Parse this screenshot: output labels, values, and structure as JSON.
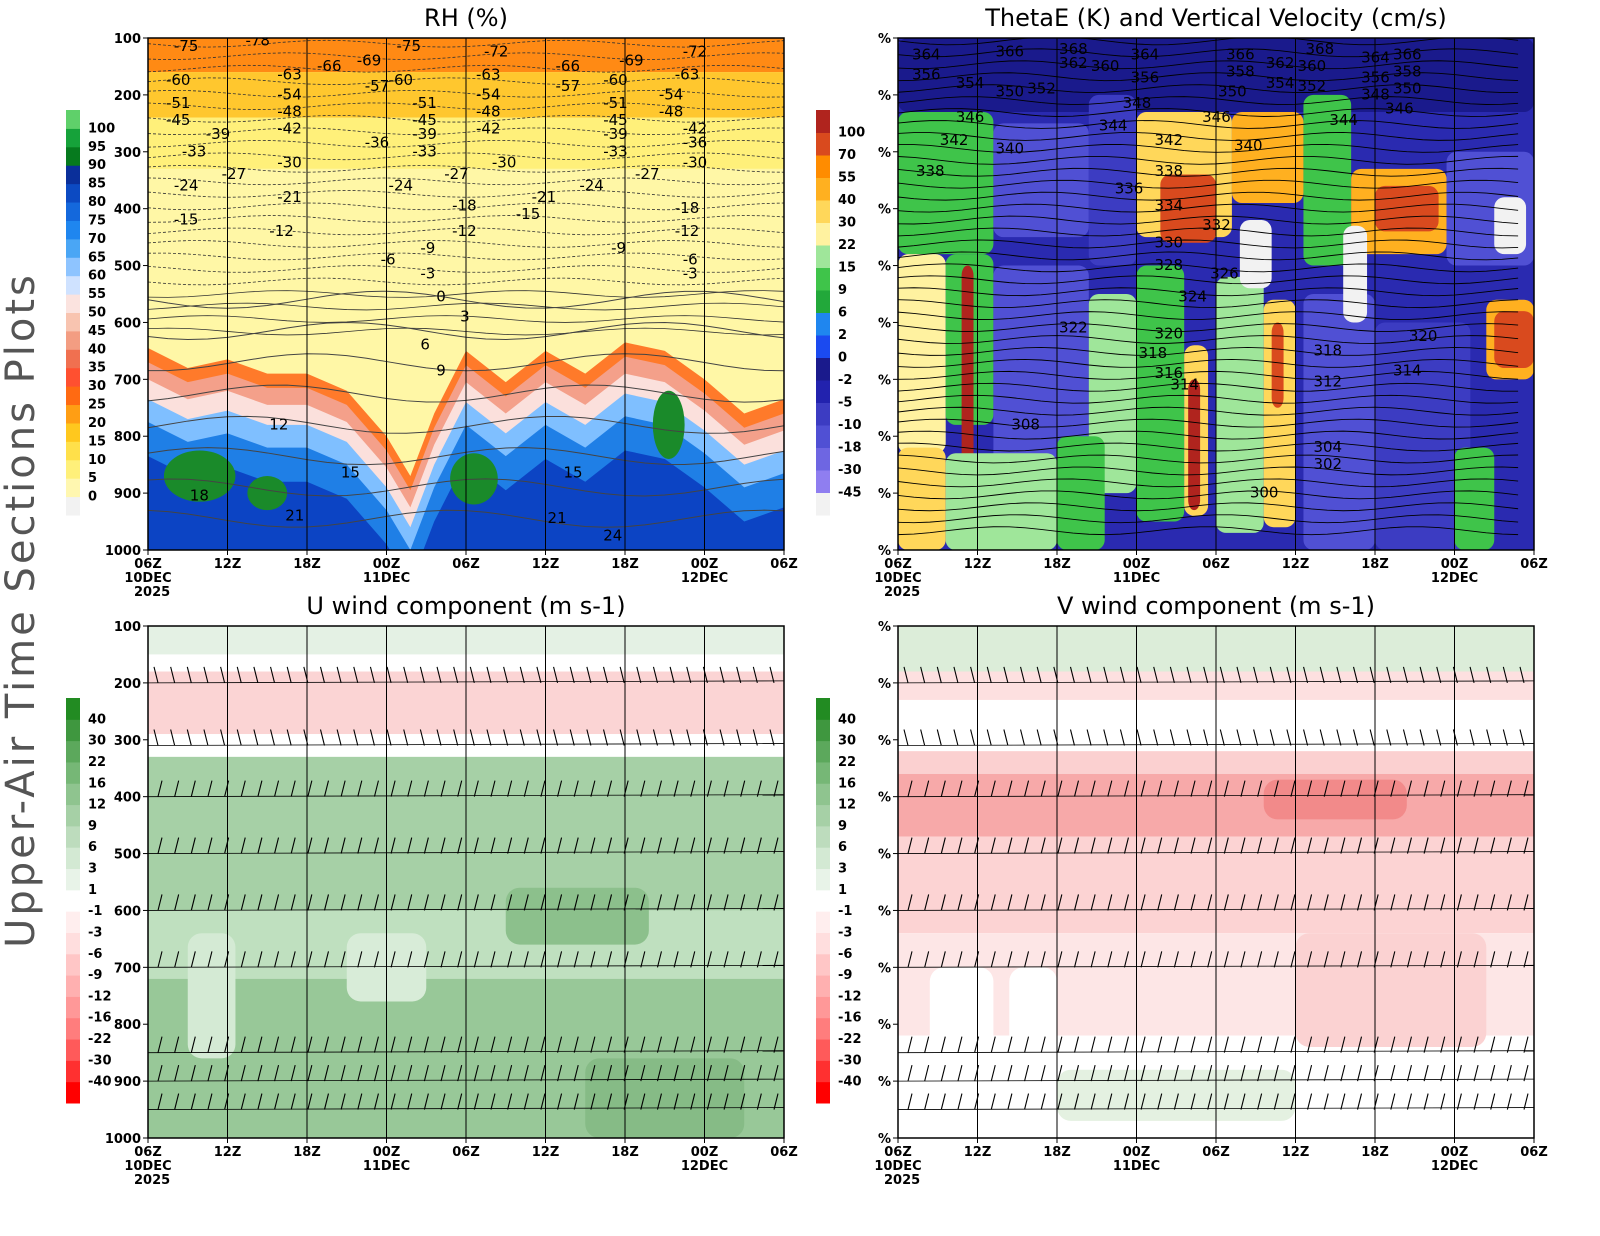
{
  "page": {
    "side_title": "Upper-Air Time Sections Plots"
  },
  "time_axis": {
    "labels": [
      "06Z",
      "12Z",
      "18Z",
      "00Z",
      "06Z",
      "12Z",
      "18Z",
      "00Z",
      "06Z"
    ],
    "date_labels": {
      "0": "10DEC",
      "3": "11DEC",
      "7": "12DEC"
    },
    "year_label": "2025"
  },
  "chart_data": [
    {
      "id": "rh",
      "type": "heatmap",
      "title": "RH (%)",
      "ylabel": "",
      "y_ticks": [
        "100",
        "200",
        "300",
        "400",
        "500",
        "600",
        "700",
        "800",
        "900",
        "1000"
      ],
      "ylim": [
        100,
        1000
      ],
      "colorbar": {
        "labels": [
          "0",
          "5",
          "10",
          "15",
          "20",
          "25",
          "30",
          "35",
          "40",
          "45",
          "50",
          "55",
          "60",
          "65",
          "70",
          "75",
          "80",
          "85",
          "90",
          "95",
          "100"
        ],
        "colors": [
          "#f2f2f2",
          "#fff7b0",
          "#fff07a",
          "#ffe04a",
          "#ffc81e",
          "#ff9e14",
          "#ff6a12",
          "#ff5030",
          "#f07050",
          "#f39d82",
          "#f8c4b0",
          "#fbe3df",
          "#cfe2ff",
          "#8ec4ff",
          "#4aa6f5",
          "#1f86ef",
          "#1468dc",
          "#0c4ac2",
          "#0a2f9a",
          "#067a1e",
          "#16a23a",
          "#5fd06a"
        ]
      },
      "bands": [
        {
          "from_pct": 100,
          "to_pct": 160,
          "color": "#ff8a14"
        },
        {
          "from_pct": 160,
          "to_pct": 240,
          "color": "#ffc72e"
        },
        {
          "from_pct": 240,
          "to_pct": 330,
          "color": "#fff07a"
        },
        {
          "from_pct": 330,
          "to_pct": 640,
          "color": "#fff7a6"
        }
      ],
      "moist_layer": [
        {
          "t": 0.0,
          "p": 645
        },
        {
          "t": 0.5,
          "p": 680
        },
        {
          "t": 1.0,
          "p": 665
        },
        {
          "t": 1.5,
          "p": 690
        },
        {
          "t": 2.0,
          "p": 690
        },
        {
          "t": 2.5,
          "p": 720
        },
        {
          "t": 3.0,
          "p": 800
        },
        {
          "t": 3.3,
          "p": 870
        },
        {
          "t": 3.6,
          "p": 760
        },
        {
          "t": 4.0,
          "p": 650
        },
        {
          "t": 4.5,
          "p": 705
        },
        {
          "t": 5.0,
          "p": 650
        },
        {
          "t": 5.5,
          "p": 690
        },
        {
          "t": 6.0,
          "p": 635
        },
        {
          "t": 6.5,
          "p": 650
        },
        {
          "t": 7.0,
          "p": 700
        },
        {
          "t": 7.5,
          "p": 760
        },
        {
          "t": 8.0,
          "p": 735
        }
      ],
      "contour_labels": [
        {
          "t": 0.2,
          "p": 115,
          "v": "-75"
        },
        {
          "t": 1.1,
          "p": 105,
          "v": "-78"
        },
        {
          "t": 2.5,
          "p": 140,
          "v": "-69"
        },
        {
          "t": 3.0,
          "p": 115,
          "v": "-75"
        },
        {
          "t": 4.1,
          "p": 125,
          "v": "-72"
        },
        {
          "t": 5.0,
          "p": 150,
          "v": "-66"
        },
        {
          "t": 5.8,
          "p": 140,
          "v": "-69"
        },
        {
          "t": 6.6,
          "p": 125,
          "v": "-72"
        },
        {
          "t": 0.1,
          "p": 175,
          "v": "-60"
        },
        {
          "t": 1.5,
          "p": 165,
          "v": "-63"
        },
        {
          "t": 2.0,
          "p": 150,
          "v": "-66"
        },
        {
          "t": 2.6,
          "p": 185,
          "v": "-57"
        },
        {
          "t": 2.9,
          "p": 175,
          "v": "-60"
        },
        {
          "t": 4.0,
          "p": 165,
          "v": "-63"
        },
        {
          "t": 5.0,
          "p": 185,
          "v": "-57"
        },
        {
          "t": 5.6,
          "p": 175,
          "v": "-60"
        },
        {
          "t": 6.5,
          "p": 165,
          "v": "-63"
        },
        {
          "t": 0.1,
          "p": 215,
          "v": "-51"
        },
        {
          "t": 1.5,
          "p": 200,
          "v": "-54"
        },
        {
          "t": 3.2,
          "p": 215,
          "v": "-51"
        },
        {
          "t": 4.0,
          "p": 200,
          "v": "-54"
        },
        {
          "t": 5.6,
          "p": 215,
          "v": "-51"
        },
        {
          "t": 6.3,
          "p": 200,
          "v": "-54"
        },
        {
          "t": 0.1,
          "p": 245,
          "v": "-45"
        },
        {
          "t": 1.5,
          "p": 230,
          "v": "-48"
        },
        {
          "t": 3.2,
          "p": 245,
          "v": "-45"
        },
        {
          "t": 4.0,
          "p": 230,
          "v": "-48"
        },
        {
          "t": 5.6,
          "p": 245,
          "v": "-45"
        },
        {
          "t": 6.3,
          "p": 230,
          "v": "-48"
        },
        {
          "t": 0.6,
          "p": 270,
          "v": "-39"
        },
        {
          "t": 1.5,
          "p": 260,
          "v": "-42"
        },
        {
          "t": 3.2,
          "p": 270,
          "v": "-39"
        },
        {
          "t": 4.0,
          "p": 260,
          "v": "-42"
        },
        {
          "t": 5.6,
          "p": 270,
          "v": "-39"
        },
        {
          "t": 6.6,
          "p": 260,
          "v": "-42"
        },
        {
          "t": 0.3,
          "p": 300,
          "v": "-33"
        },
        {
          "t": 2.6,
          "p": 285,
          "v": "-36"
        },
        {
          "t": 3.2,
          "p": 300,
          "v": "-33"
        },
        {
          "t": 5.6,
          "p": 300,
          "v": "-33"
        },
        {
          "t": 6.6,
          "p": 285,
          "v": "-36"
        },
        {
          "t": 0.8,
          "p": 340,
          "v": "-27"
        },
        {
          "t": 1.5,
          "p": 320,
          "v": "-30"
        },
        {
          "t": 3.6,
          "p": 340,
          "v": "-27"
        },
        {
          "t": 4.2,
          "p": 320,
          "v": "-30"
        },
        {
          "t": 6.0,
          "p": 340,
          "v": "-27"
        },
        {
          "t": 6.6,
          "p": 320,
          "v": "-30"
        },
        {
          "t": 0.2,
          "p": 360,
          "v": "-24"
        },
        {
          "t": 1.5,
          "p": 380,
          "v": "-21"
        },
        {
          "t": 2.9,
          "p": 360,
          "v": "-24"
        },
        {
          "t": 4.7,
          "p": 380,
          "v": "-21"
        },
        {
          "t": 5.3,
          "p": 360,
          "v": "-24"
        },
        {
          "t": 3.7,
          "p": 395,
          "v": "-18"
        },
        {
          "t": 6.5,
          "p": 400,
          "v": "-18"
        },
        {
          "t": 0.2,
          "p": 420,
          "v": "-15"
        },
        {
          "t": 4.5,
          "p": 410,
          "v": "-15"
        },
        {
          "t": 1.4,
          "p": 440,
          "v": "-12"
        },
        {
          "t": 3.7,
          "p": 440,
          "v": "-12"
        },
        {
          "t": 6.5,
          "p": 440,
          "v": "-12"
        },
        {
          "t": 3.3,
          "p": 470,
          "v": "-9"
        },
        {
          "t": 5.7,
          "p": 470,
          "v": "-9"
        },
        {
          "t": 2.8,
          "p": 490,
          "v": "-6"
        },
        {
          "t": 6.6,
          "p": 490,
          "v": "-6"
        },
        {
          "t": 3.3,
          "p": 515,
          "v": "-3"
        },
        {
          "t": 6.6,
          "p": 515,
          "v": "-3"
        },
        {
          "t": 3.5,
          "p": 555,
          "v": "0"
        },
        {
          "t": 3.8,
          "p": 590,
          "v": "3"
        },
        {
          "t": 3.3,
          "p": 640,
          "v": "6"
        },
        {
          "t": 3.5,
          "p": 685,
          "v": "9"
        },
        {
          "t": 1.4,
          "p": 780,
          "v": "12"
        },
        {
          "t": 2.3,
          "p": 865,
          "v": "15"
        },
        {
          "t": 5.1,
          "p": 865,
          "v": "15"
        },
        {
          "t": 0.4,
          "p": 905,
          "v": "18"
        },
        {
          "t": 1.6,
          "p": 940,
          "v": "21"
        },
        {
          "t": 4.9,
          "p": 945,
          "v": "21"
        },
        {
          "t": 5.6,
          "p": 975,
          "v": "24"
        }
      ]
    },
    {
      "id": "thetae",
      "type": "heatmap",
      "title": "ThetaE (K) and Vertical Velocity (cm/s)",
      "ylabel": "",
      "y_ticks": [
        "%",
        "%",
        "%",
        "%",
        "%",
        "%",
        "%",
        "%",
        "%",
        "%"
      ],
      "ylim": [
        100,
        1000
      ],
      "colorbar": {
        "labels": [
          "-45",
          "-30",
          "-18",
          "-10",
          "-5",
          "-2",
          "0",
          "2",
          "6",
          "9",
          "15",
          "22",
          "30",
          "40",
          "55",
          "70",
          "100"
        ],
        "colors": [
          "#f2f2f2",
          "#8f7ef0",
          "#6e66e2",
          "#5050d4",
          "#3c3cc2",
          "#2222ae",
          "#1a1a8c",
          "#1b4af0",
          "#1f86ef",
          "#22a83a",
          "#3fc44a",
          "#9fe69a",
          "#fff2a0",
          "#ffd75a",
          "#ffb020",
          "#ff8c00",
          "#d94a1e",
          "#b0241e"
        ]
      },
      "contour_labels": [
        {
          "t": 0.05,
          "p": 130,
          "v": "364"
        },
        {
          "t": 1.1,
          "p": 125,
          "v": "366"
        },
        {
          "t": 1.9,
          "p": 120,
          "v": "368"
        },
        {
          "t": 1.9,
          "p": 145,
          "v": "362"
        },
        {
          "t": 2.3,
          "p": 150,
          "v": "360"
        },
        {
          "t": 2.8,
          "p": 130,
          "v": "364"
        },
        {
          "t": 2.8,
          "p": 170,
          "v": "356"
        },
        {
          "t": 4.0,
          "p": 130,
          "v": "366"
        },
        {
          "t": 4.0,
          "p": 160,
          "v": "358"
        },
        {
          "t": 4.5,
          "p": 145,
          "v": "362"
        },
        {
          "t": 4.9,
          "p": 150,
          "v": "360"
        },
        {
          "t": 5.0,
          "p": 120,
          "v": "368"
        },
        {
          "t": 5.7,
          "p": 135,
          "v": "364"
        },
        {
          "t": 6.1,
          "p": 130,
          "v": "366"
        },
        {
          "t": 6.1,
          "p": 160,
          "v": "358"
        },
        {
          "t": 0.05,
          "p": 165,
          "v": "356"
        },
        {
          "t": 0.6,
          "p": 180,
          "v": "354"
        },
        {
          "t": 1.1,
          "p": 195,
          "v": "350"
        },
        {
          "t": 1.5,
          "p": 190,
          "v": "352"
        },
        {
          "t": 3.9,
          "p": 195,
          "v": "350"
        },
        {
          "t": 4.5,
          "p": 180,
          "v": "354"
        },
        {
          "t": 4.9,
          "p": 185,
          "v": "352"
        },
        {
          "t": 5.7,
          "p": 170,
          "v": "356"
        },
        {
          "t": 5.7,
          "p": 200,
          "v": "348"
        },
        {
          "t": 6.1,
          "p": 190,
          "v": "350"
        },
        {
          "t": 2.7,
          "p": 215,
          "v": "348"
        },
        {
          "t": 0.6,
          "p": 240,
          "v": "346"
        },
        {
          "t": 3.7,
          "p": 240,
          "v": "346"
        },
        {
          "t": 6.0,
          "p": 225,
          "v": "346"
        },
        {
          "t": 2.4,
          "p": 255,
          "v": "344"
        },
        {
          "t": 5.3,
          "p": 245,
          "v": "344"
        },
        {
          "t": 0.4,
          "p": 280,
          "v": "342"
        },
        {
          "t": 3.1,
          "p": 280,
          "v": "342"
        },
        {
          "t": 1.1,
          "p": 295,
          "v": "340"
        },
        {
          "t": 4.1,
          "p": 290,
          "v": "340"
        },
        {
          "t": 0.1,
          "p": 335,
          "v": "338"
        },
        {
          "t": 3.1,
          "p": 335,
          "v": "338"
        },
        {
          "t": 2.6,
          "p": 365,
          "v": "336"
        },
        {
          "t": 3.1,
          "p": 395,
          "v": "334"
        },
        {
          "t": 3.7,
          "p": 430,
          "v": "332"
        },
        {
          "t": 3.1,
          "p": 460,
          "v": "330"
        },
        {
          "t": 3.1,
          "p": 500,
          "v": "328"
        },
        {
          "t": 3.8,
          "p": 515,
          "v": "326"
        },
        {
          "t": 3.4,
          "p": 555,
          "v": "324"
        },
        {
          "t": 1.9,
          "p": 610,
          "v": "322"
        },
        {
          "t": 3.1,
          "p": 620,
          "v": "320"
        },
        {
          "t": 6.3,
          "p": 625,
          "v": "320"
        },
        {
          "t": 2.9,
          "p": 655,
          "v": "318"
        },
        {
          "t": 5.1,
          "p": 650,
          "v": "318"
        },
        {
          "t": 3.1,
          "p": 690,
          "v": "316"
        },
        {
          "t": 6.1,
          "p": 685,
          "v": "314"
        },
        {
          "t": 3.3,
          "p": 710,
          "v": "314"
        },
        {
          "t": 5.1,
          "p": 705,
          "v": "312"
        },
        {
          "t": 1.3,
          "p": 780,
          "v": "308"
        },
        {
          "t": 5.1,
          "p": 820,
          "v": "304"
        },
        {
          "t": 5.1,
          "p": 850,
          "v": "302"
        },
        {
          "t": 4.3,
          "p": 900,
          "v": "300"
        }
      ]
    },
    {
      "id": "uwind",
      "type": "heatmap",
      "title": "U wind component (m s-1)",
      "ylabel": "",
      "y_ticks": [
        "100",
        "200",
        "300",
        "400",
        "500",
        "600",
        "700",
        "800",
        "900",
        "1000"
      ],
      "ylim": [
        100,
        1000
      ],
      "colorbar": {
        "labels": [
          "40",
          "30",
          "22",
          "16",
          "12",
          "9",
          "6",
          "3",
          "1",
          "-1",
          "-3",
          "-6",
          "-9",
          "-12",
          "-16",
          "-22",
          "-30",
          "-40"
        ],
        "colors": [
          "#ff0000",
          "#ff3030",
          "#ff5a5a",
          "#ff7d7d",
          "#ff9898",
          "#ffb0b0",
          "#ffc6c6",
          "#ffdede",
          "#ffeeee",
          "#ffffff",
          "#e8f3e8",
          "#d3e9d3",
          "#bddcbd",
          "#a6d0a6",
          "#8fc48f",
          "#76b776",
          "#5ca85c",
          "#3f973f",
          "#228b22"
        ]
      },
      "bands": [
        {
          "from_pct": 100,
          "to_pct": 150,
          "color": "#e4f1e4"
        },
        {
          "from_pct": 150,
          "to_pct": 180,
          "color": "#ffffff"
        },
        {
          "from_pct": 180,
          "to_pct": 290,
          "color": "#fbd4d4"
        },
        {
          "from_pct": 290,
          "to_pct": 330,
          "color": "#ffffff"
        },
        {
          "from_pct": 330,
          "to_pct": 600,
          "color": "#a6d0a6"
        },
        {
          "from_pct": 600,
          "to_pct": 720,
          "color": "#bfe0bf"
        },
        {
          "from_pct": 720,
          "to_pct": 1000,
          "color": "#98c898"
        }
      ],
      "barb_levels": [
        200,
        310,
        400,
        500,
        600,
        700,
        850,
        900,
        950
      ]
    },
    {
      "id": "vwind",
      "type": "heatmap",
      "title": "V wind component (m s-1)",
      "ylabel": "",
      "y_ticks": [
        "%",
        "%",
        "%",
        "%",
        "%",
        "%",
        "%",
        "%",
        "%",
        "%"
      ],
      "ylim": [
        100,
        1000
      ],
      "colorbar": {
        "labels": [
          "40",
          "30",
          "22",
          "16",
          "12",
          "9",
          "6",
          "3",
          "1",
          "-1",
          "-3",
          "-6",
          "-9",
          "-12",
          "-16",
          "-22",
          "-30",
          "-40"
        ],
        "colors": [
          "#ff0000",
          "#ff3030",
          "#ff5a5a",
          "#ff7d7d",
          "#ff9898",
          "#ffb0b0",
          "#ffc6c6",
          "#ffdede",
          "#ffeeee",
          "#ffffff",
          "#e8f3e8",
          "#d3e9d3",
          "#bddcbd",
          "#a6d0a6",
          "#8fc48f",
          "#76b776",
          "#5ca85c",
          "#3f973f",
          "#228b22"
        ]
      },
      "bands": [
        {
          "from_pct": 100,
          "to_pct": 180,
          "color": "#dcedd9"
        },
        {
          "from_pct": 180,
          "to_pct": 230,
          "color": "#fde0e0"
        },
        {
          "from_pct": 230,
          "to_pct": 320,
          "color": "#ffffff"
        },
        {
          "from_pct": 320,
          "to_pct": 360,
          "color": "#fbd0d0"
        },
        {
          "from_pct": 360,
          "to_pct": 470,
          "color": "#f7a9a9"
        },
        {
          "from_pct": 470,
          "to_pct": 640,
          "color": "#fcd3d3"
        },
        {
          "from_pct": 640,
          "to_pct": 820,
          "color": "#fde6e6"
        },
        {
          "from_pct": 820,
          "to_pct": 1000,
          "color": "#ffffff"
        }
      ],
      "barb_levels": [
        200,
        310,
        400,
        500,
        600,
        700,
        850,
        900,
        950
      ]
    }
  ]
}
